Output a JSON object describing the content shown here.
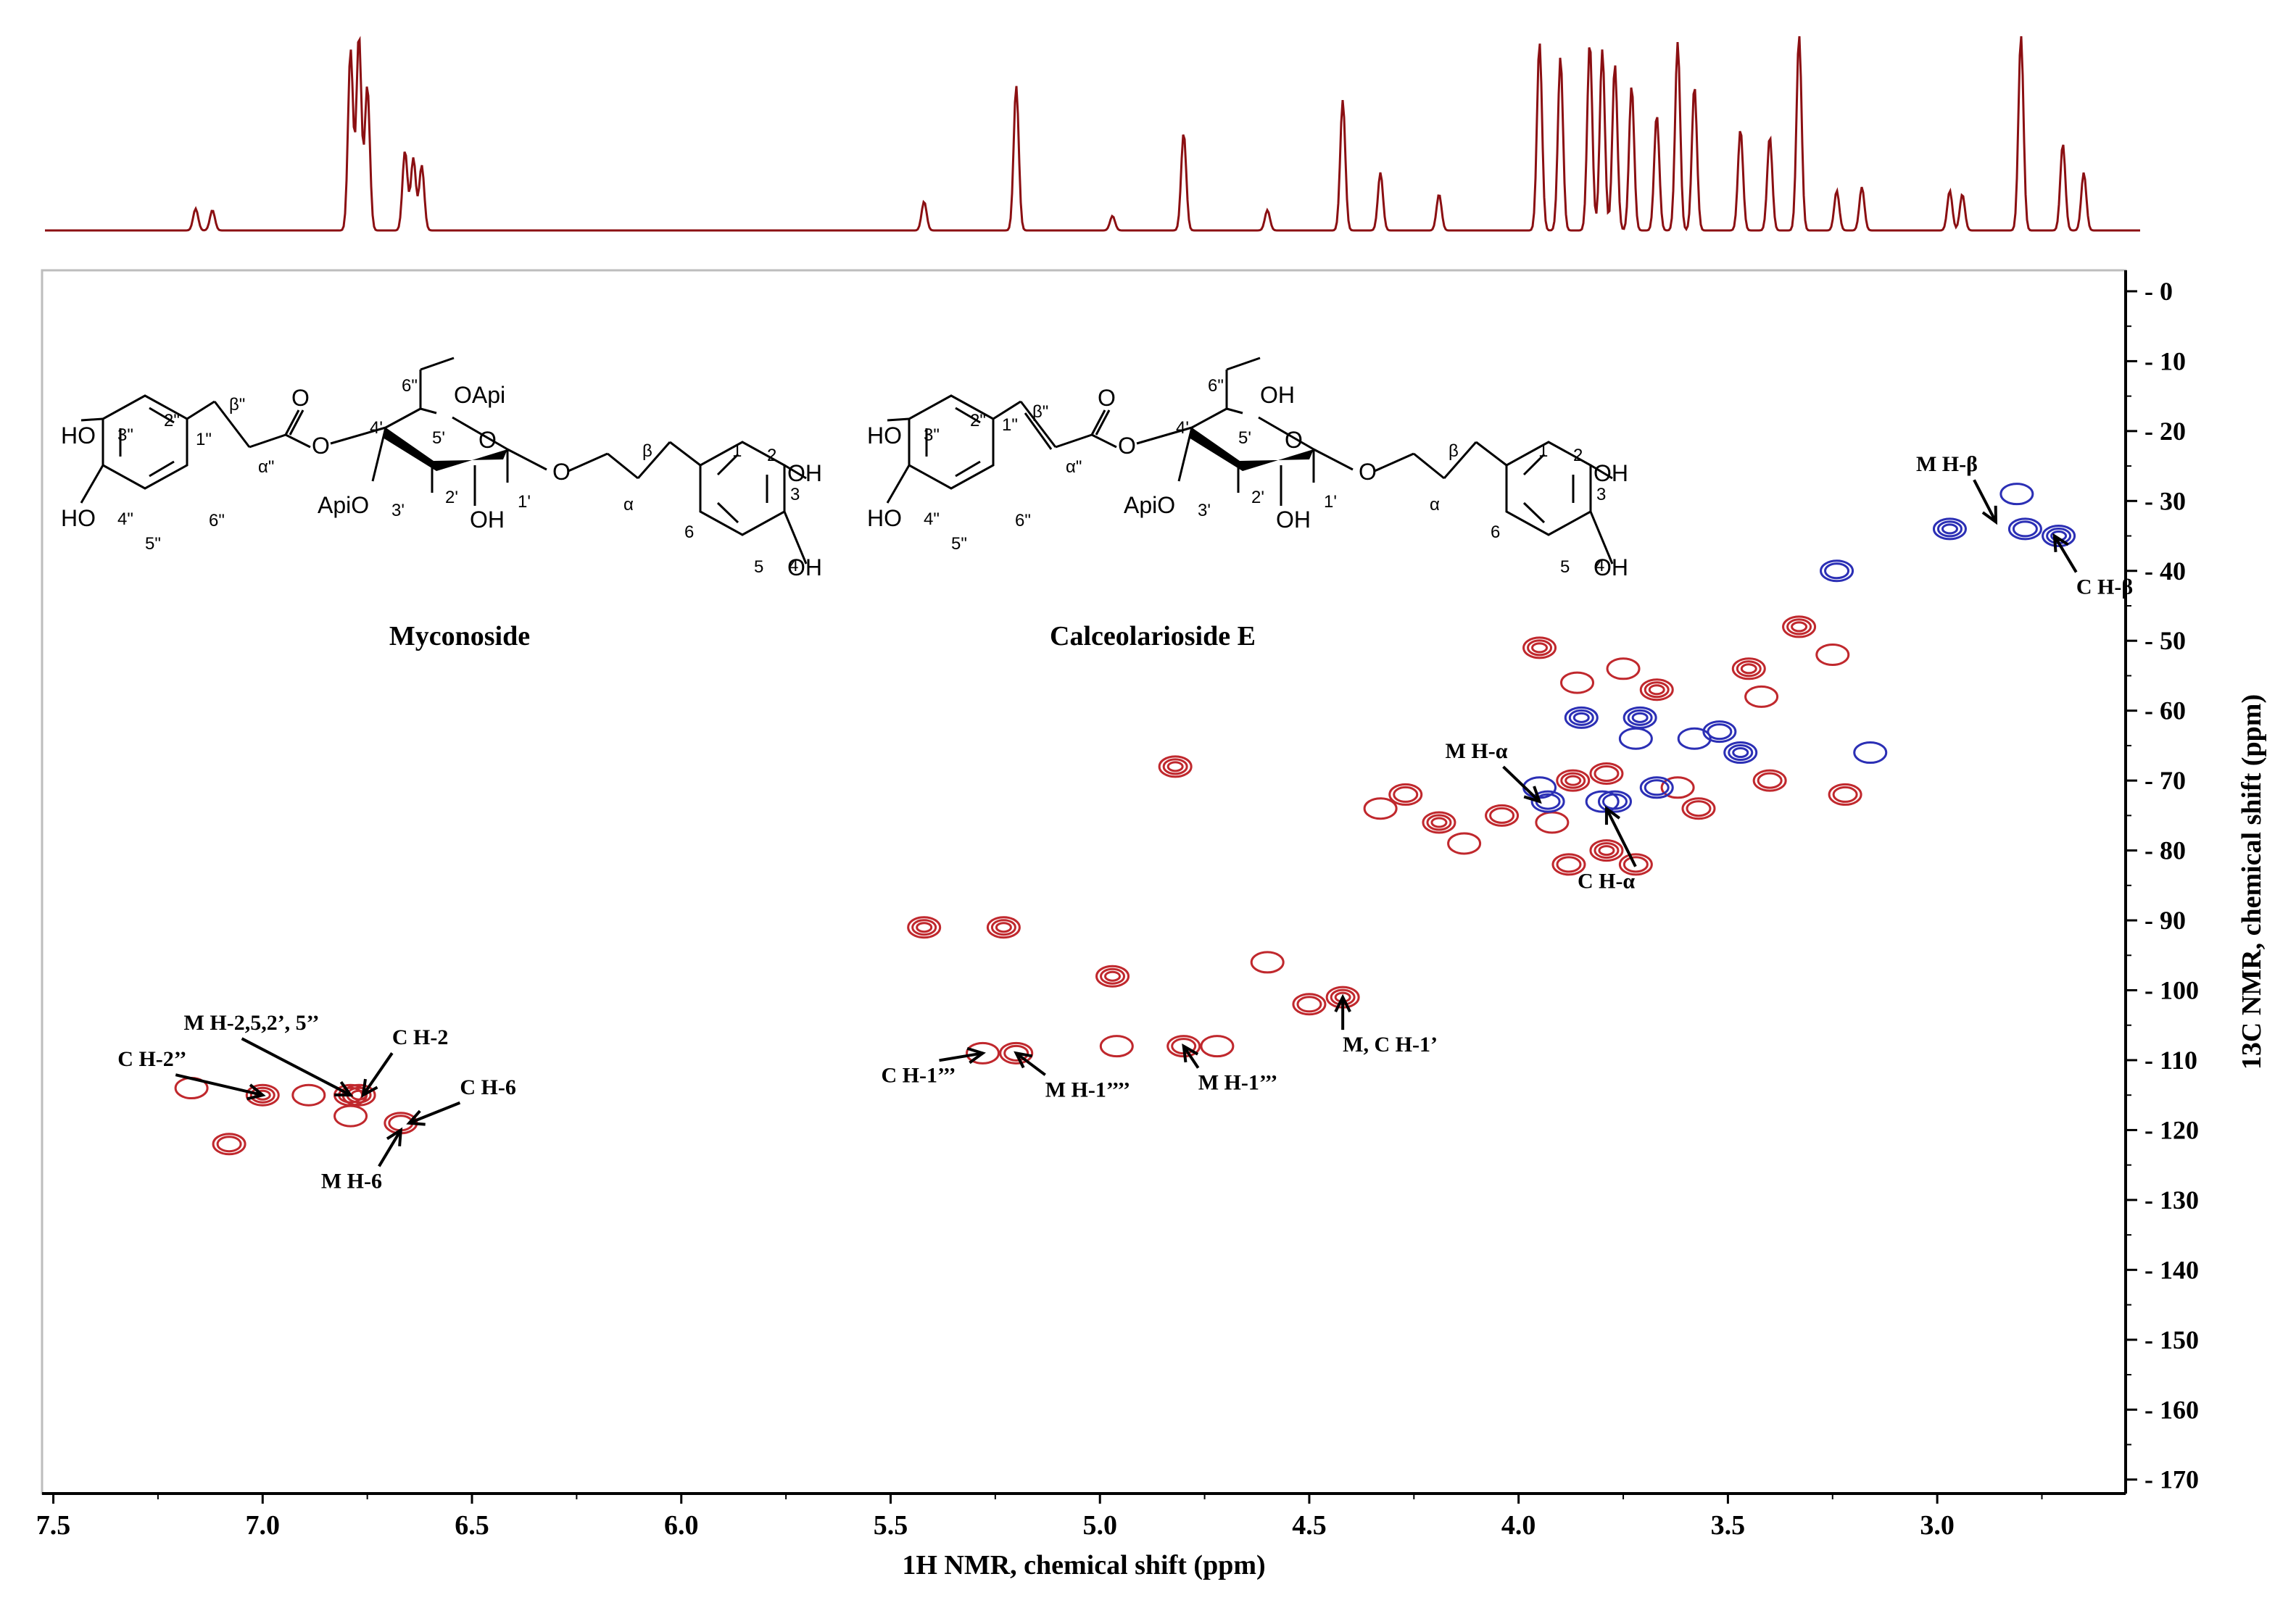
{
  "chart_data": {
    "type": "scatter",
    "title": "",
    "xlabel": "1H NMR, chemical shift (ppm)",
    "ylabel": "13C NMR, chemical shift (ppm)",
    "xlim": [
      7.52,
      2.55
    ],
    "ylim": [
      -3,
      172
    ],
    "x_ticks": [
      "7.5",
      "7.0",
      "6.5",
      "6.0",
      "5.5",
      "5.0",
      "4.5",
      "4.0",
      "3.5",
      "3.0"
    ],
    "y_ticks": [
      "0",
      "10",
      "20",
      "30",
      "40",
      "50",
      "60",
      "70",
      "80",
      "90",
      "100",
      "110",
      "120",
      "130",
      "140",
      "150",
      "160",
      "170"
    ],
    "grid": false,
    "legend": "none",
    "colors": {
      "positive": "#c0282d",
      "negative": "#2b2fb5",
      "spectrum": "#8b0f12"
    },
    "series": [
      {
        "color": "red",
        "x": [
          7.17,
          7.08,
          7.0,
          6.89,
          6.79,
          6.77,
          6.79,
          6.67,
          5.42,
          5.28,
          5.2,
          4.97,
          4.96,
          4.8,
          4.82,
          4.6,
          4.5,
          4.42,
          4.33,
          4.27,
          4.19,
          4.13,
          4.04,
          3.95,
          3.92,
          3.88,
          3.87,
          3.86,
          3.79,
          3.79,
          3.75,
          3.72,
          3.67,
          3.62,
          3.57,
          3.45,
          3.42,
          3.4,
          3.33,
          3.25,
          3.22,
          5.23,
          4.72
        ],
        "y": [
          114,
          122,
          115,
          115,
          115,
          115,
          118,
          119,
          91,
          109,
          109,
          98,
          108,
          108,
          68,
          96,
          102,
          101,
          74,
          72,
          76,
          79,
          75,
          51,
          76,
          82,
          70,
          56,
          69,
          80,
          54,
          82,
          57,
          71,
          74,
          54,
          58,
          70,
          48,
          52,
          72,
          91,
          108
        ]
      },
      {
        "color": "blue",
        "x": [
          3.95,
          3.93,
          3.85,
          3.8,
          3.77,
          3.71,
          3.58,
          3.52,
          3.47,
          3.16,
          3.24,
          2.97,
          2.81,
          2.79,
          2.71,
          3.72,
          3.67
        ],
        "y": [
          71,
          73,
          61,
          73,
          73,
          61,
          64,
          63,
          66,
          66,
          40,
          34,
          29,
          34,
          35,
          64,
          71
        ]
      }
    ],
    "annotations": [
      {
        "label": "M H-β",
        "x": 2.86,
        "y": 33
      },
      {
        "label": "C H-β",
        "x": 2.72,
        "y": 35
      },
      {
        "label": "M H-α",
        "x": 3.95,
        "y": 73
      },
      {
        "label": "C H-α",
        "x": 3.79,
        "y": 74
      },
      {
        "label": "M, C H-1’",
        "x": 4.42,
        "y": 101
      },
      {
        "label": "M H-1’’’",
        "x": 4.8,
        "y": 108
      },
      {
        "label": "M H-1’’’’",
        "x": 5.2,
        "y": 109
      },
      {
        "label": "C H-1’’’",
        "x": 5.28,
        "y": 109
      },
      {
        "label": "C H-2’’",
        "x": 7.0,
        "y": 115
      },
      {
        "label": "M H-2,5,2’, 5’’",
        "x": 6.79,
        "y": 115
      },
      {
        "label": "C H-2",
        "x": 6.76,
        "y": 115
      },
      {
        "label": "C H-6",
        "x": 6.65,
        "y": 119
      },
      {
        "label": "M H-6",
        "x": 6.67,
        "y": 120
      }
    ]
  },
  "structures": {
    "left_name": "Myconoside",
    "right_name": "Calceolarioside E",
    "substituents": {
      "hydroxyl": "HO",
      "hydroxyl_right": "OH",
      "oxygen": "O",
      "apiosyl_ether": "ApiO",
      "apiosyl_methyl": "OApi"
    },
    "atom_labels": {
      "c1": "1",
      "c2": "2",
      "c3": "3",
      "c4": "4",
      "c5": "5",
      "c6": "6",
      "c1p": "1'",
      "c2p": "2'",
      "c3p": "3'",
      "c4p": "4'",
      "c5p": "5'",
      "c6pp": "6\"",
      "c1pp": "1\"",
      "c2pp": "2\"",
      "c3pp": "3\"",
      "c4pp": "4\"",
      "c5pp": "5\"",
      "c6pp_ring": "6\"",
      "alpha": "α",
      "beta": "β",
      "alpha_pp": "α\"",
      "beta_pp": "β\""
    }
  }
}
